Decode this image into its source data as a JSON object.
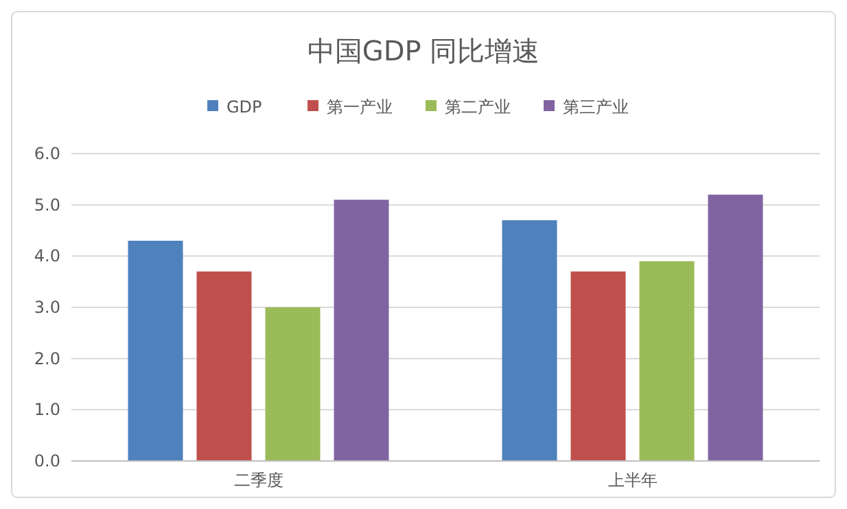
{
  "chart_data": {
    "type": "bar",
    "title": "中国GDP 同比增速",
    "categories": [
      "二季度",
      "上半年"
    ],
    "series": [
      {
        "name": "GDP",
        "color": "#4f81bd",
        "values": [
          4.3,
          4.7
        ]
      },
      {
        "name": "第一产业",
        "color": "#c0504d",
        "values": [
          3.7,
          3.7
        ]
      },
      {
        "name": "第二产业",
        "color": "#9bbb59",
        "values": [
          3.0,
          3.9
        ]
      },
      {
        "name": "第三产业",
        "color": "#8064a2",
        "values": [
          5.1,
          5.2
        ]
      }
    ],
    "ylim": [
      0,
      6
    ],
    "yticks": [
      {
        "value": 0,
        "label": "0.0"
      },
      {
        "value": 1,
        "label": "1.0"
      },
      {
        "value": 2,
        "label": "2.0"
      },
      {
        "value": 3,
        "label": "3.0"
      },
      {
        "value": 4,
        "label": "4.0"
      },
      {
        "value": 5,
        "label": "5.0"
      },
      {
        "value": 6,
        "label": "6.0"
      }
    ],
    "grid": "y",
    "legend": "top"
  }
}
